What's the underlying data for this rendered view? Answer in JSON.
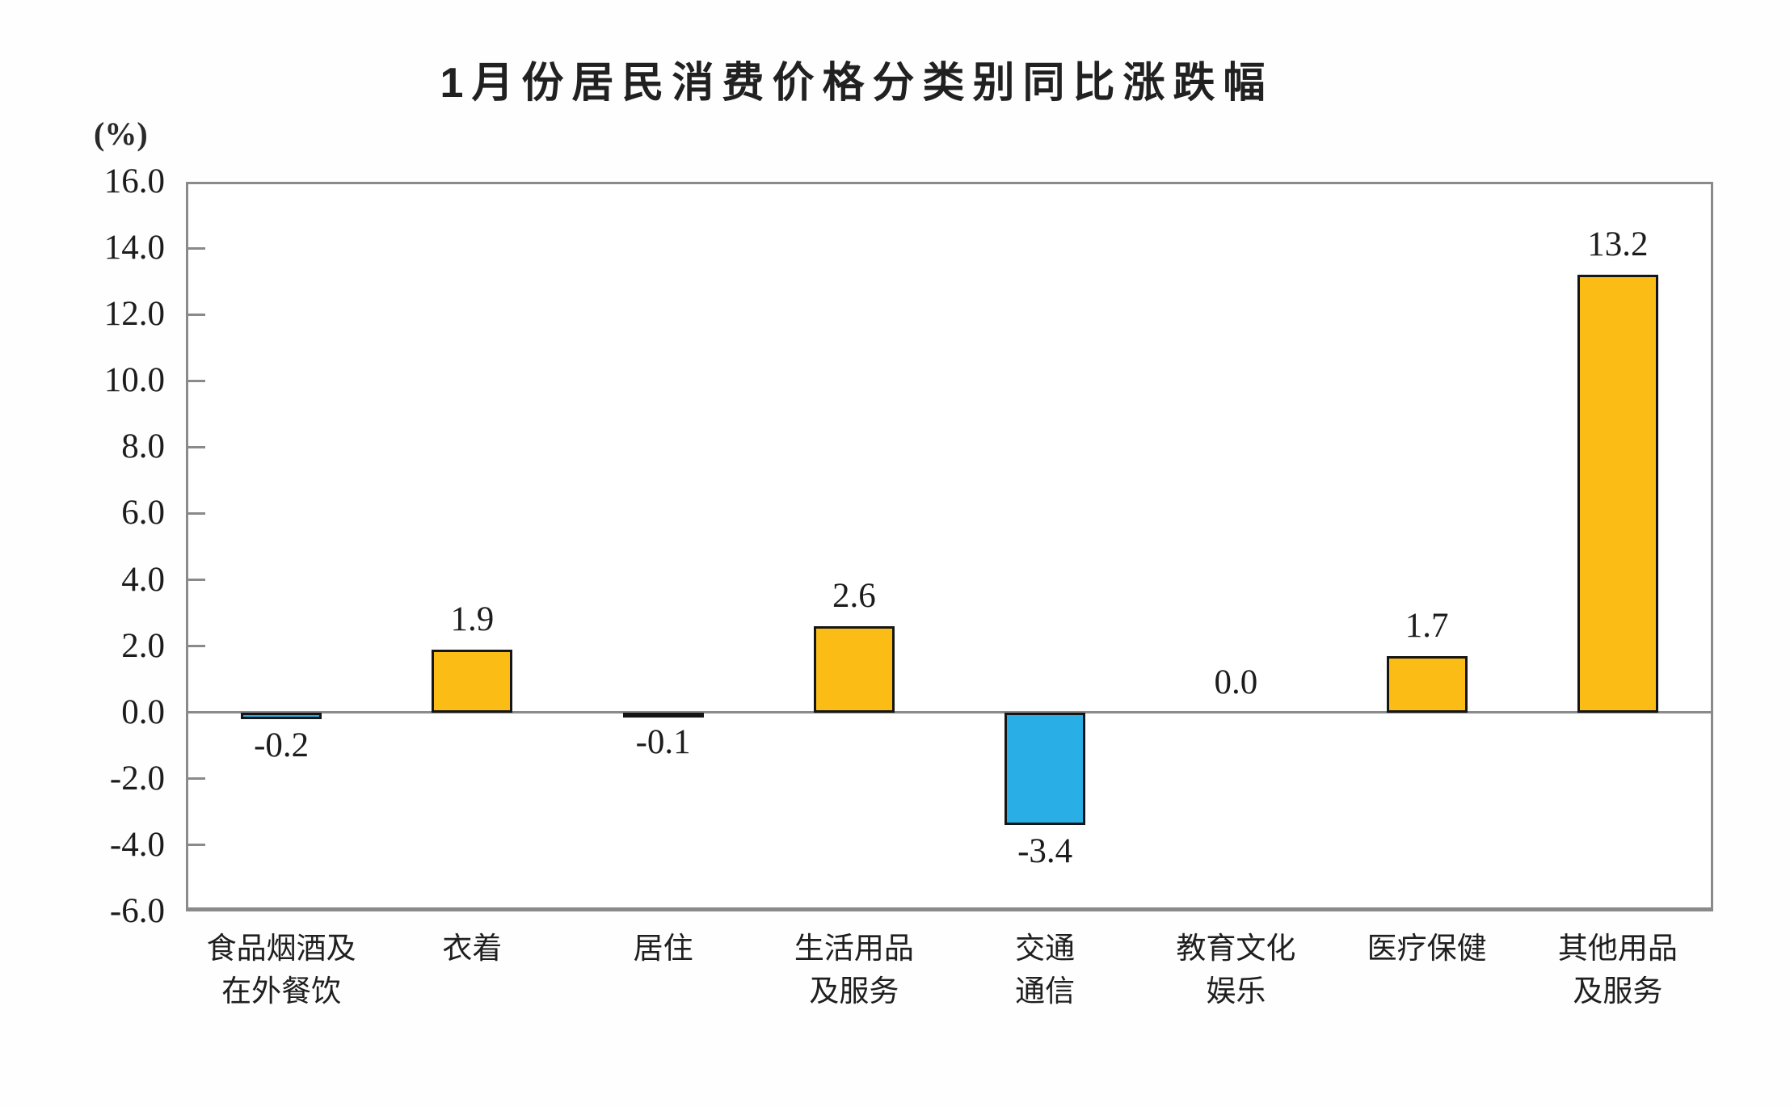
{
  "chart": {
    "title": "1月份居民消费价格分类别同比涨跌幅",
    "unit_label": "(%)"
  },
  "chart_data": {
    "type": "bar",
    "title": "1月份居民消费价格分类别同比涨跌幅",
    "xlabel": "",
    "ylabel": "(%)",
    "ylim": [
      -6.0,
      16.0
    ],
    "ytick_step": 2.0,
    "ytick_labels": [
      "16.0",
      "14.0",
      "12.0",
      "10.0",
      "8.0",
      "6.0",
      "4.0",
      "2.0",
      "0.0",
      "-2.0",
      "-4.0",
      "-6.0"
    ],
    "grid": false,
    "legend": "none",
    "categories": [
      "食品烟酒及\n在外餐饮",
      "衣着",
      "居住",
      "生活用品\n及服务",
      "交通\n通信",
      "教育文化\n娱乐",
      "医疗保健",
      "其他用品\n及服务"
    ],
    "values": [
      -0.2,
      1.9,
      -0.1,
      2.6,
      -3.4,
      0.0,
      1.7,
      13.2
    ],
    "value_labels": [
      "-0.2",
      "1.9",
      "-0.1",
      "2.6",
      "-3.4",
      "0.0",
      "1.7",
      "13.2"
    ],
    "bar_colors": [
      "#2aaee6",
      "#fbbc16",
      "#2aaee6",
      "#fbbc16",
      "#2aaee6",
      "#fbbc16",
      "#fbbc16",
      "#fbbc16"
    ],
    "colors": {
      "positive_bar": "#fbbc16",
      "negative_bar": "#2aaee6",
      "bar_border": "#151515",
      "axis": "#8a8a8a",
      "text": "#1c1c1c"
    }
  }
}
